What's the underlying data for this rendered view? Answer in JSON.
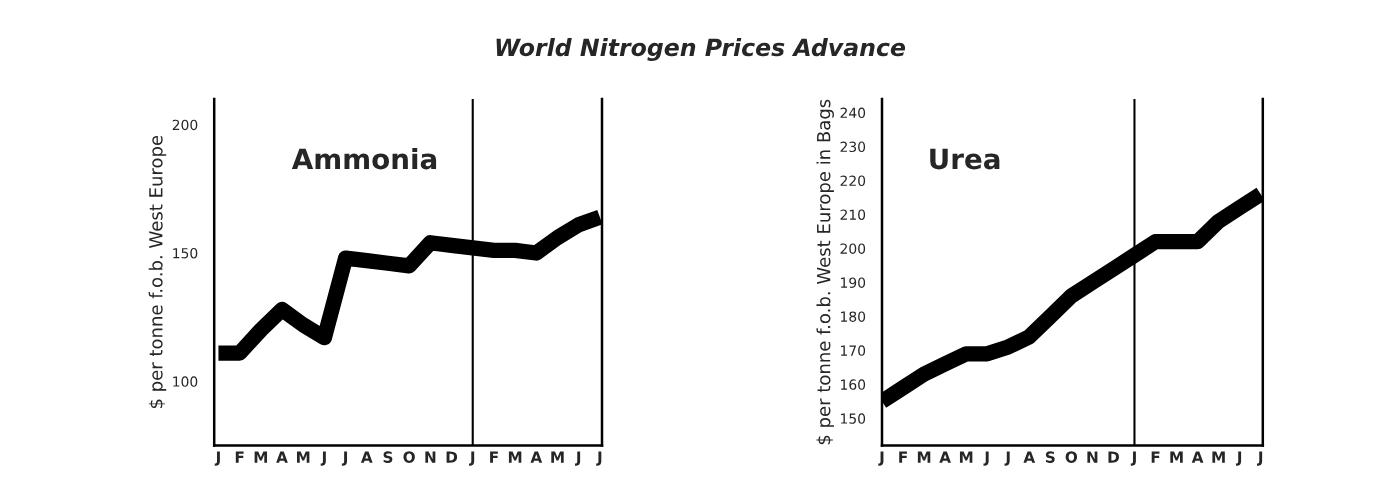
{
  "chart_data": [
    {
      "type": "line",
      "title": "World Nitrogen Prices Advance",
      "ylabel": "$ per tonne f.o.b. West Europe",
      "annotations": [
        "Ammonia"
      ],
      "categories": [
        "J",
        "F",
        "M",
        "A",
        "M",
        "J",
        "J",
        "A",
        "S",
        "O",
        "N",
        "D",
        "J",
        "F",
        "M",
        "A",
        "M",
        "J",
        "J"
      ],
      "ylim": [
        75,
        210
      ],
      "yticks": [
        100,
        150,
        200
      ],
      "series": [
        {
          "color": "#000000",
          "values": [
            111,
            111,
            120,
            128,
            122,
            117,
            148,
            147,
            146,
            145,
            154,
            153,
            152,
            151,
            151,
            150,
            156,
            161,
            164
          ]
        }
      ]
    },
    {
      "type": "line",
      "ylabel": "$ per tonne f.o.b. West Europe in Bags",
      "annotations": [
        "Urea"
      ],
      "categories": [
        "J",
        "F",
        "M",
        "A",
        "M",
        "J",
        "J",
        "A",
        "S",
        "O",
        "N",
        "D",
        "J",
        "F",
        "M",
        "A",
        "M",
        "J",
        "J"
      ],
      "ylim": [
        142,
        244
      ],
      "yticks": [
        150,
        160,
        170,
        180,
        190,
        200,
        210,
        220,
        230,
        240
      ],
      "series": [
        {
          "color": "#000000",
          "values": [
            155,
            159,
            163,
            166,
            169,
            169,
            171,
            174,
            180,
            186,
            190,
            194,
            198,
            202,
            202,
            202,
            208,
            212,
            216
          ]
        }
      ]
    }
  ]
}
